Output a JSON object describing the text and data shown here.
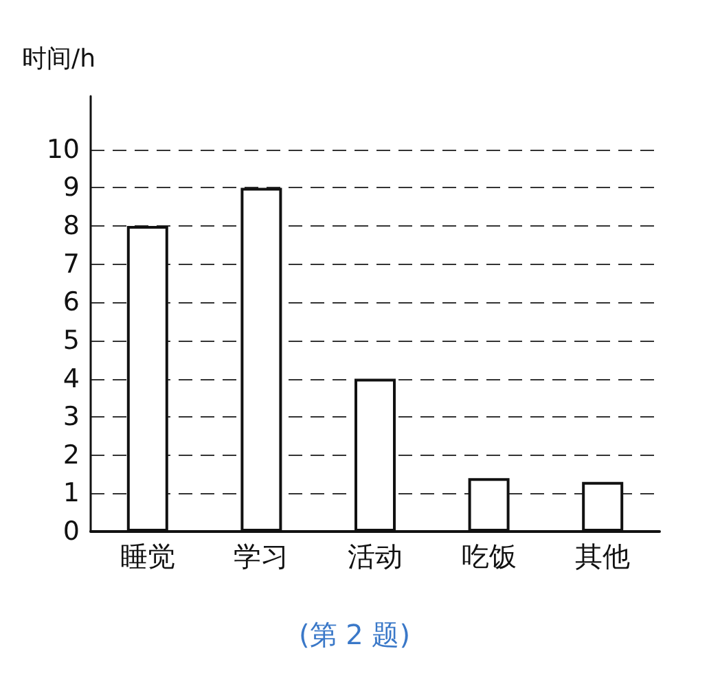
{
  "chart_data": {
    "type": "bar",
    "ylabel": "时间/h",
    "categories": [
      "睡觉",
      "学习",
      "活动",
      "吃饭",
      "其他"
    ],
    "values": [
      8,
      9,
      4,
      1.4,
      1.3
    ],
    "color": "#ffffff",
    "ylim": [
      0,
      11.4
    ],
    "yticks": [
      0,
      1,
      2,
      3,
      4,
      5,
      6,
      7,
      8,
      9,
      10
    ],
    "grid": "y",
    "annotations": [
      "(第 2 题)"
    ]
  }
}
